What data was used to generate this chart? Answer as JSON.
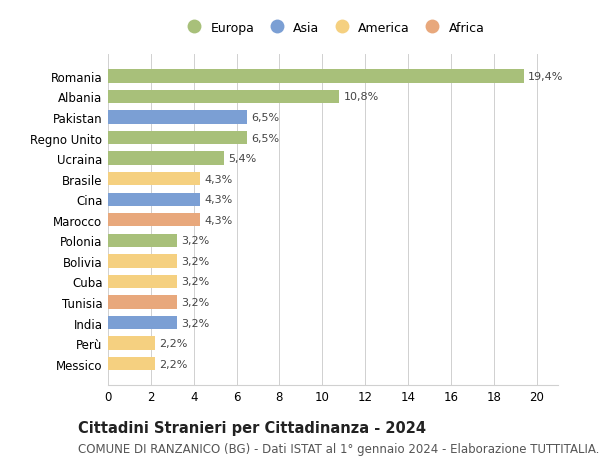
{
  "countries": [
    "Romania",
    "Albania",
    "Pakistan",
    "Regno Unito",
    "Ucraina",
    "Brasile",
    "Cina",
    "Marocco",
    "Polonia",
    "Bolivia",
    "Cuba",
    "Tunisia",
    "India",
    "Perù",
    "Messico"
  ],
  "values": [
    19.4,
    10.8,
    6.5,
    6.5,
    5.4,
    4.3,
    4.3,
    4.3,
    3.2,
    3.2,
    3.2,
    3.2,
    3.2,
    2.2,
    2.2
  ],
  "labels": [
    "19,4%",
    "10,8%",
    "6,5%",
    "6,5%",
    "5,4%",
    "4,3%",
    "4,3%",
    "4,3%",
    "3,2%",
    "3,2%",
    "3,2%",
    "3,2%",
    "3,2%",
    "2,2%",
    "2,2%"
  ],
  "continents": [
    "Europa",
    "Europa",
    "Asia",
    "Europa",
    "Europa",
    "America",
    "Asia",
    "Africa",
    "Europa",
    "America",
    "America",
    "Africa",
    "Asia",
    "America",
    "America"
  ],
  "continent_colors": {
    "Europa": "#a8c07a",
    "Asia": "#7b9fd4",
    "America": "#f5d080",
    "Africa": "#e8a87c"
  },
  "legend_order": [
    "Europa",
    "Asia",
    "America",
    "Africa"
  ],
  "title": "Cittadini Stranieri per Cittadinanza - 2024",
  "subtitle": "COMUNE DI RANZANICO (BG) - Dati ISTAT al 1° gennaio 2024 - Elaborazione TUTTITALIA.IT",
  "xlim": [
    0,
    21
  ],
  "xticks": [
    0,
    2,
    4,
    6,
    8,
    10,
    12,
    14,
    16,
    18,
    20
  ],
  "background_color": "#ffffff",
  "grid_color": "#d0d0d0",
  "bar_height": 0.65,
  "title_fontsize": 10.5,
  "subtitle_fontsize": 8.5,
  "label_fontsize": 8,
  "ytick_fontsize": 8.5,
  "xtick_fontsize": 8.5,
  "legend_fontsize": 9
}
